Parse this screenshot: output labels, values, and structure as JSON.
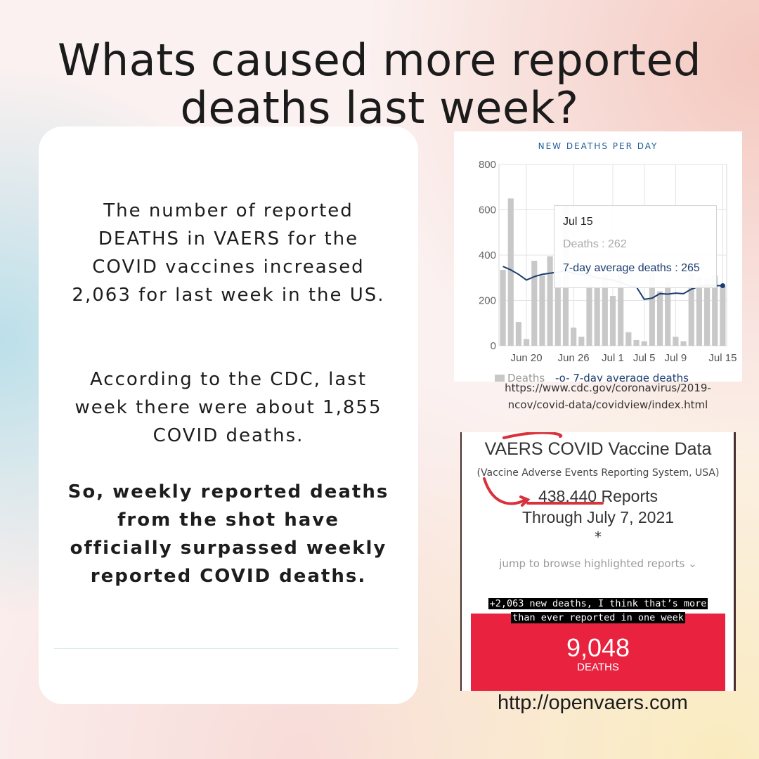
{
  "headline": {
    "line1": "Whats caused more reported",
    "line2": "deaths last week?"
  },
  "card": {
    "paragraph1": "The number of reported DEATHS in VAERS for the COVID vaccines increased 2,063 for last week in the US.",
    "paragraph2": "According to the CDC, last week there were about 1,855 COVID deaths.",
    "paragraph3": "So, weekly reported deaths from the shot have officially surpassed weekly reported COVID deaths."
  },
  "cdc_chart": {
    "title": "NEW DEATHS PER DAY",
    "tooltip": {
      "date": "Jul 15",
      "deaths": "Deaths : 262",
      "average": "7-day average deaths : 265"
    },
    "legend": {
      "deaths": "Deaths",
      "average": "7-day average deaths"
    },
    "source_url": "https://www.cdc.gov/coronavirus/2019-ncov/covid-data/covidview/index.html"
  },
  "chart_data": {
    "type": "bar",
    "title": "NEW DEATHS PER DAY",
    "ylim": [
      0,
      800
    ],
    "yticks": [
      0,
      200,
      400,
      600,
      800
    ],
    "xtick_labels": [
      "Jun 20",
      "Jun 26",
      "Jul 1",
      "Jul 5",
      "Jul 9",
      "Jul 15"
    ],
    "xtick_index": [
      3,
      9,
      14,
      18,
      22,
      28
    ],
    "grid": true,
    "legend_position": "bottom",
    "series": [
      {
        "name": "Deaths",
        "color": "#c8c8c8",
        "values": [
          335,
          650,
          105,
          30,
          375,
          310,
          395,
          305,
          620,
          80,
          40,
          265,
          255,
          310,
          220,
          350,
          60,
          25,
          20,
          370,
          240,
          280,
          40,
          20,
          320,
          300,
          295,
          310,
          262
        ]
      },
      {
        "name": "7-day average deaths",
        "color": "#1a3c6e",
        "values": [
          350,
          335,
          315,
          290,
          305,
          315,
          320,
          325,
          330,
          320,
          315,
          310,
          300,
          295,
          290,
          280,
          265,
          260,
          205,
          210,
          230,
          228,
          232,
          230,
          250,
          262,
          265,
          265,
          265
        ]
      }
    ]
  },
  "vaers_panel": {
    "title": "VAERS COVID Vaccine Data",
    "subtitle": "(Vaccine Adverse Events Reporting System, USA)",
    "reports": "438,440 Reports",
    "through": "Through July 7, 2021",
    "star": "*",
    "jump": "jump to browse highlighted reports ⌄",
    "caption": "+2,063 new deaths, I think that’s more than ever reported in one week",
    "death_count": "9,048",
    "death_label": "DEATHS",
    "accent_color": "#e8223f"
  },
  "site_url": "http://openvaers.com"
}
